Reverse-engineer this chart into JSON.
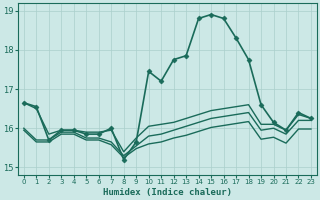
{
  "bg_color": "#cce8e6",
  "grid_color": "#aacfcc",
  "line_color": "#1a6b5a",
  "xlabel": "Humidex (Indice chaleur)",
  "xlim": [
    -0.5,
    23.5
  ],
  "ylim": [
    14.8,
    19.2
  ],
  "yticks": [
    15,
    16,
    17,
    18,
    19
  ],
  "xticks": [
    0,
    1,
    2,
    3,
    4,
    5,
    6,
    7,
    8,
    9,
    10,
    11,
    12,
    13,
    14,
    15,
    16,
    17,
    18,
    19,
    20,
    21,
    22,
    23
  ],
  "series": [
    {
      "x": [
        0,
        1,
        2,
        3,
        4,
        5,
        6,
        7,
        8,
        9,
        10,
        11,
        12,
        13,
        14,
        15,
        16,
        17,
        18,
        19,
        20,
        21,
        22,
        23
      ],
      "y": [
        16.65,
        16.55,
        15.7,
        15.95,
        15.95,
        15.85,
        15.85,
        16.0,
        15.2,
        15.65,
        17.45,
        17.2,
        17.75,
        17.85,
        18.8,
        18.9,
        18.8,
        18.3,
        17.75,
        16.6,
        16.15,
        15.95,
        16.4,
        16.25
      ],
      "marker": "D",
      "linewidth": 1.2,
      "markersize": 2.5
    },
    {
      "x": [
        0,
        1,
        2,
        3,
        4,
        5,
        6,
        7,
        8,
        9,
        10,
        11,
        12,
        13,
        14,
        15,
        16,
        17,
        18,
        19,
        20,
        21,
        22,
        23
      ],
      "y": [
        16.65,
        16.5,
        15.85,
        15.95,
        15.95,
        15.9,
        15.9,
        15.95,
        15.4,
        15.75,
        16.05,
        16.1,
        16.15,
        16.25,
        16.35,
        16.45,
        16.5,
        16.55,
        16.6,
        16.1,
        16.1,
        15.95,
        16.35,
        16.25
      ],
      "marker": null,
      "linewidth": 1.0,
      "markersize": 0
    },
    {
      "x": [
        0,
        1,
        2,
        3,
        4,
        5,
        6,
        7,
        8,
        9,
        10,
        11,
        12,
        13,
        14,
        15,
        16,
        17,
        18,
        19,
        20,
        21,
        22,
        23
      ],
      "y": [
        16.0,
        15.7,
        15.7,
        15.9,
        15.9,
        15.75,
        15.75,
        15.65,
        15.3,
        15.55,
        15.8,
        15.85,
        15.95,
        16.05,
        16.15,
        16.25,
        16.3,
        16.35,
        16.4,
        15.95,
        16.0,
        15.85,
        16.2,
        16.2
      ],
      "marker": null,
      "linewidth": 1.0,
      "markersize": 0
    },
    {
      "x": [
        0,
        1,
        2,
        3,
        4,
        5,
        6,
        7,
        8,
        9,
        10,
        11,
        12,
        13,
        14,
        15,
        16,
        17,
        18,
        19,
        20,
        21,
        22,
        23
      ],
      "y": [
        15.95,
        15.65,
        15.65,
        15.85,
        15.85,
        15.7,
        15.7,
        15.58,
        15.25,
        15.48,
        15.6,
        15.65,
        15.75,
        15.82,
        15.92,
        16.02,
        16.07,
        16.12,
        16.17,
        15.72,
        15.77,
        15.62,
        15.98,
        15.98
      ],
      "marker": null,
      "linewidth": 1.0,
      "markersize": 0
    }
  ]
}
